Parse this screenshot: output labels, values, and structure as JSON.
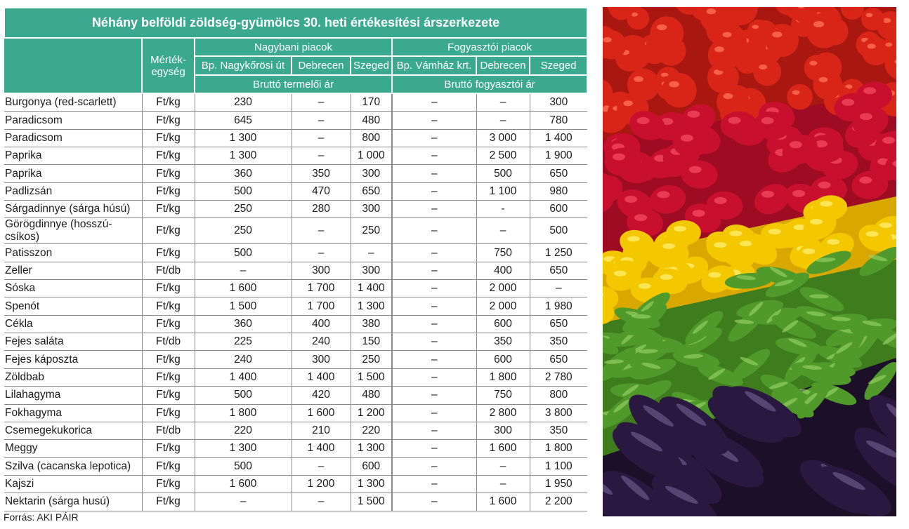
{
  "title": "Néhány belföldi zöldség-gyümölcs 30. heti értékesítési árszerkezete",
  "headers": {
    "unit": "Mérték-egység",
    "group_wholesale": "Nagybani piacok",
    "group_consumer": "Fogyasztói piacok",
    "wholesale_cols": [
      "Bp. Nagykőrösi út",
      "Debrecen",
      "Szeged"
    ],
    "consumer_cols": [
      "Bp. Vámház krt.",
      "Debrecen",
      "Szeged"
    ],
    "wholesale_price": "Bruttó termelői ár",
    "consumer_price": "Bruttó fogyasztói ár"
  },
  "rows": [
    [
      "Burgonya (red-scarlett)",
      "Ft/kg",
      "230",
      "–",
      "170",
      "–",
      "–",
      "300"
    ],
    [
      "Paradicsom",
      "Ft/kg",
      "645",
      "–",
      "480",
      "–",
      "–",
      "780"
    ],
    [
      "Paradicsom",
      "Ft/kg",
      "1 300",
      "–",
      "800",
      "–",
      "3 000",
      "1 400"
    ],
    [
      "Paprika",
      "Ft/kg",
      "1 300",
      "–",
      "1 000",
      "–",
      "2 500",
      "1 900"
    ],
    [
      "Paprika",
      "Ft/kg",
      "360",
      "350",
      "300",
      "–",
      "500",
      "650"
    ],
    [
      "Padlizsán",
      "Ft/kg",
      "500",
      "470",
      "650",
      "–",
      "1 100",
      "980"
    ],
    [
      "Sárgadinnye (sárga húsú)",
      "Ft/kg",
      "250",
      "280",
      "300",
      "–",
      "-",
      "600"
    ],
    [
      "Görögdinnye (hosszú-csíkos)",
      "Ft/kg",
      "250",
      "–",
      "250",
      "–",
      "–",
      "500"
    ],
    [
      "Patisszon",
      "Ft/kg",
      "500",
      "–",
      "–",
      "–",
      "750",
      "1 250"
    ],
    [
      "Zeller",
      "Ft/db",
      "–",
      "300",
      "300",
      "–",
      "400",
      "650"
    ],
    [
      "Sóska",
      "Ft/kg",
      "1 600",
      "1 700",
      "1 400",
      "–",
      "2 000",
      "–"
    ],
    [
      "Spenót",
      "Ft/kg",
      "1 500",
      "1 700",
      "1 300",
      "–",
      "2 000",
      "1 980"
    ],
    [
      "Cékla",
      "Ft/kg",
      "360",
      "400",
      "380",
      "–",
      "600",
      "650"
    ],
    [
      "Fejes saláta",
      "Ft/db",
      "225",
      "240",
      "150",
      "–",
      "350",
      "350"
    ],
    [
      "Fejes káposzta",
      "Ft/kg",
      "240",
      "300",
      "250",
      "–",
      "600",
      "650"
    ],
    [
      "Zöldbab",
      "Ft/kg",
      "1 400",
      "1 400",
      "1 500",
      "–",
      "1 800",
      "2 780"
    ],
    [
      "Lilahagyma",
      "Ft/kg",
      "500",
      "420",
      "480",
      "–",
      "750",
      "800"
    ],
    [
      "Fokhagyma",
      "Ft/kg",
      "1 800",
      "1 600",
      "1 200",
      "–",
      "2 800",
      "3 800"
    ],
    [
      "Csemegekukorica",
      "Ft/db",
      "220",
      "210",
      "220",
      "–",
      "300",
      "350"
    ],
    [
      "Meggy",
      "Ft/kg",
      "1 300",
      "1 400",
      "1 300",
      "–",
      "1 600",
      "1 800"
    ],
    [
      "Szilva (cacanska lepotica)",
      "Ft/kg",
      "500",
      "–",
      "600",
      "–",
      "–",
      "1 100"
    ],
    [
      "Kajszi",
      "Ft/kg",
      "1 600",
      "1 200",
      "1 300",
      "–",
      "–",
      "1 950"
    ],
    [
      "Nektarin (sárga husú)",
      "Ft/kg",
      "–",
      "–",
      "1 500",
      "–",
      "1 600",
      "2 200"
    ]
  ],
  "source": "Forrás: AKI PÁIR",
  "photo": {
    "icon": "vegetable-market-photo",
    "colors": {
      "tomato": "#d92518",
      "redpepper": "#c8102e",
      "yellowpepper": "#f4c800",
      "greenpepper": "#4f9a2a",
      "eggplant": "#2a1840"
    }
  }
}
